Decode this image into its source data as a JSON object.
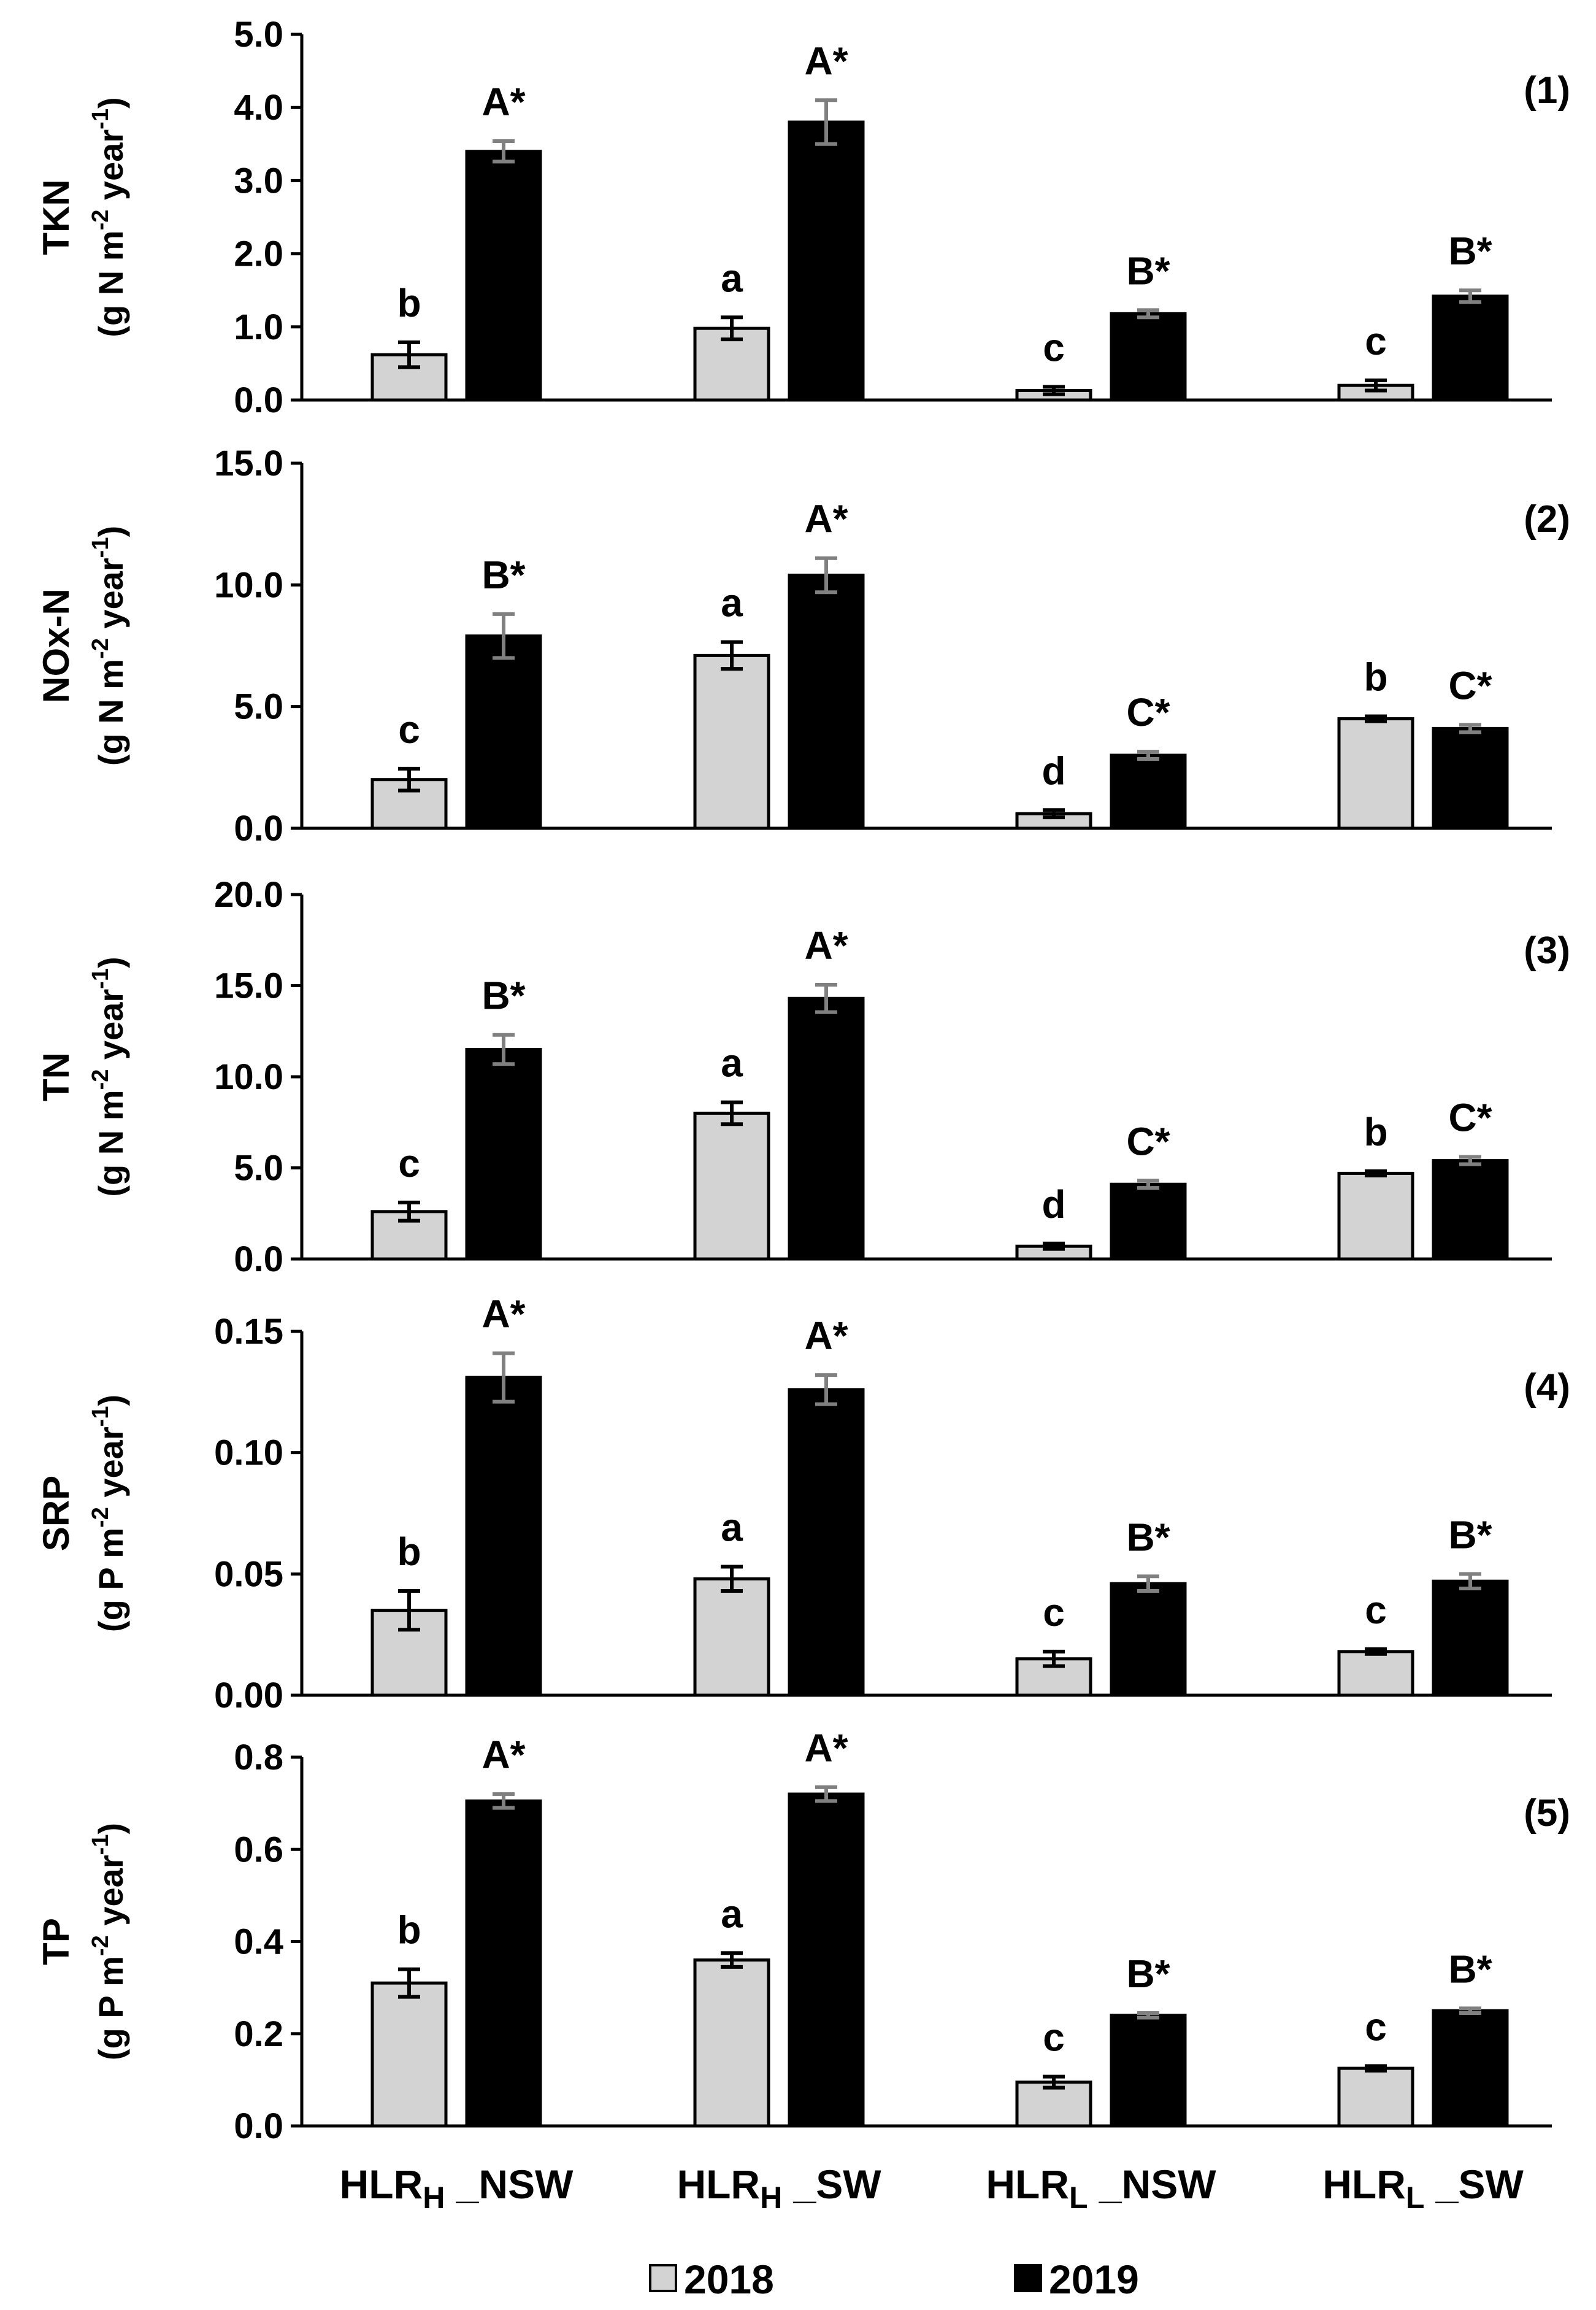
{
  "chart_data": {
    "type": "bar",
    "categories": [
      {
        "main": "HLR",
        "sub": "H",
        "suffix": " _NSW"
      },
      {
        "main": "HLR",
        "sub": "H",
        "suffix": " _SW"
      },
      {
        "main": "HLR",
        "sub": "L",
        "suffix": " _NSW"
      },
      {
        "main": "HLR",
        "sub": "L",
        "suffix": " _SW"
      }
    ],
    "legend": [
      {
        "name": "2018",
        "color": "#d3d3d3"
      },
      {
        "name": "2019",
        "color": "#000000"
      }
    ],
    "colors": {
      "bar_2018": "#d3d3d3",
      "bar_2019": "#000000",
      "errorbar_2018": "#000000",
      "errorbar_2019": "#808080",
      "axis": "#000000"
    },
    "panels": [
      {
        "id": "(1)",
        "ylabel_main": "TKN",
        "ylabel_prefix": "(g N m",
        "ylabel_exp1": "-2",
        "ylabel_mid": " year",
        "ylabel_exp2": "-1",
        "ylabel_suffix": ")",
        "ylim": [
          0,
          5.0
        ],
        "yticks": [
          "0.0",
          "1.0",
          "2.0",
          "3.0",
          "4.0",
          "5.0"
        ],
        "series": [
          {
            "name": "2018",
            "values": [
              0.62,
              0.98,
              0.13,
              0.2
            ],
            "errors": [
              0.17,
              0.15,
              0.05,
              0.07
            ],
            "labels": [
              "b",
              "a",
              "c",
              "c"
            ]
          },
          {
            "name": "2019",
            "values": [
              3.4,
              3.8,
              1.18,
              1.42
            ],
            "errors": [
              0.14,
              0.3,
              0.05,
              0.08
            ],
            "labels": [
              "A*",
              "A*",
              "B*",
              "B*"
            ]
          }
        ]
      },
      {
        "id": "(2)",
        "ylabel_main": "NOx-N",
        "ylabel_prefix": "(g N m",
        "ylabel_exp1": "-2",
        "ylabel_mid": " year",
        "ylabel_exp2": "-1",
        "ylabel_suffix": ")",
        "ylim": [
          0,
          15.0
        ],
        "yticks": [
          "0.0",
          "5.0",
          "10.0",
          "15.0"
        ],
        "series": [
          {
            "name": "2018",
            "values": [
              2.0,
              7.1,
              0.6,
              4.5
            ],
            "errors": [
              0.45,
              0.55,
              0.15,
              0.1
            ],
            "labels": [
              "c",
              "a",
              "d",
              "b"
            ]
          },
          {
            "name": "2019",
            "values": [
              7.9,
              10.4,
              3.0,
              4.1
            ],
            "errors": [
              0.9,
              0.7,
              0.15,
              0.15
            ],
            "labels": [
              "B*",
              "A*",
              "C*",
              "C*"
            ]
          }
        ]
      },
      {
        "id": "(3)",
        "ylabel_main": "TN",
        "ylabel_prefix": "(g N m",
        "ylabel_exp1": "-2",
        "ylabel_mid": " year",
        "ylabel_exp2": "-1",
        "ylabel_suffix": ")",
        "ylim": [
          0,
          20.0
        ],
        "yticks": [
          "0.0",
          "5.0",
          "10.0",
          "15.0",
          "20.0"
        ],
        "series": [
          {
            "name": "2018",
            "values": [
              2.6,
              8.0,
              0.7,
              4.7
            ],
            "errors": [
              0.5,
              0.6,
              0.15,
              0.12
            ],
            "labels": [
              "c",
              "a",
              "d",
              "b"
            ]
          },
          {
            "name": "2019",
            "values": [
              11.5,
              14.3,
              4.1,
              5.4
            ],
            "errors": [
              0.8,
              0.75,
              0.2,
              0.2
            ],
            "labels": [
              "B*",
              "A*",
              "C*",
              "C*"
            ]
          }
        ]
      },
      {
        "id": "(4)",
        "ylabel_main": "SRP",
        "ylabel_prefix": "(g P m",
        "ylabel_exp1": "-2",
        "ylabel_mid": " year",
        "ylabel_exp2": "-1",
        "ylabel_suffix": ")",
        "ylim": [
          0,
          0.15
        ],
        "yticks": [
          "0.00",
          "0.05",
          "0.10",
          "0.15"
        ],
        "series": [
          {
            "name": "2018",
            "values": [
              0.035,
              0.048,
              0.015,
              0.018
            ],
            "errors": [
              0.008,
              0.005,
              0.003,
              0.001
            ],
            "labels": [
              "b",
              "a",
              "c",
              "c"
            ]
          },
          {
            "name": "2019",
            "values": [
              0.131,
              0.126,
              0.046,
              0.047
            ],
            "errors": [
              0.01,
              0.006,
              0.003,
              0.003
            ],
            "labels": [
              "A*",
              "A*",
              "B*",
              "B*"
            ]
          }
        ]
      },
      {
        "id": "(5)",
        "ylabel_main": "TP",
        "ylabel_prefix": "(g P m",
        "ylabel_exp1": "-2",
        "ylabel_mid": " year",
        "ylabel_exp2": "-1",
        "ylabel_suffix": ")",
        "ylim": [
          0,
          0.8
        ],
        "yticks": [
          "0.0",
          "0.2",
          "0.4",
          "0.6",
          "0.8"
        ],
        "series": [
          {
            "name": "2018",
            "values": [
              0.31,
              0.36,
              0.095,
              0.125
            ],
            "errors": [
              0.03,
              0.015,
              0.012,
              0.005
            ],
            "labels": [
              "b",
              "a",
              "c",
              "c"
            ]
          },
          {
            "name": "2019",
            "values": [
              0.705,
              0.72,
              0.24,
              0.25
            ],
            "errors": [
              0.015,
              0.015,
              0.005,
              0.005
            ],
            "labels": [
              "A*",
              "A*",
              "B*",
              "B*"
            ]
          }
        ]
      }
    ]
  }
}
